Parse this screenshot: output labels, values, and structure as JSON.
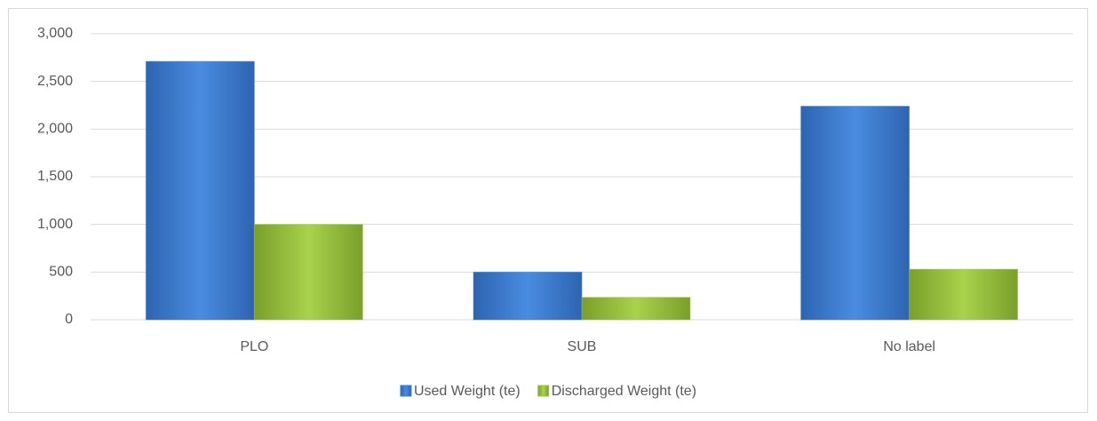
{
  "chart_data": {
    "type": "bar",
    "categories": [
      "PLO",
      "SUB",
      "No label"
    ],
    "series": [
      {
        "name": "Used Weight (te)",
        "color": "#3c7fd6",
        "values": [
          2710,
          500,
          2240
        ]
      },
      {
        "name": "Discharged Weight (te)",
        "color": "#9cc63f",
        "values": [
          1000,
          235,
          530
        ]
      }
    ],
    "ylim": [
      0,
      3000
    ],
    "yticks": [
      0,
      500,
      {
        "value": 1000,
        "label": "1,000"
      },
      {
        "value": 1500,
        "label": "1,500"
      },
      {
        "value": 2000,
        "label": "2,000"
      },
      {
        "value": 2500,
        "label": "2,500"
      },
      {
        "value": 3000,
        "label": "3,000"
      }
    ],
    "grid": true,
    "legend": "bottom"
  }
}
